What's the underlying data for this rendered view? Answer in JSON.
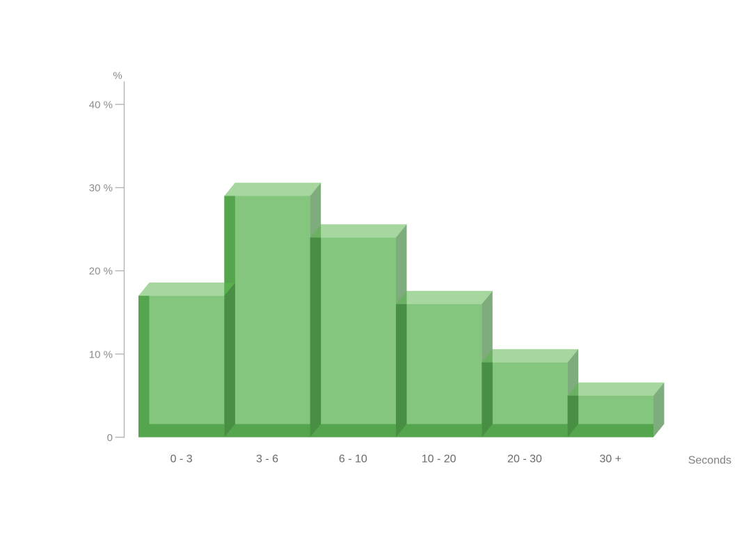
{
  "page": {
    "background": "#ffffff"
  },
  "chart_data": {
    "type": "bar",
    "variant": "3d-histogram",
    "title": "",
    "categories": [
      "0 - 3",
      "3 - 6",
      "6 - 10",
      "10 - 20",
      "20 - 30",
      "30 +"
    ],
    "values": [
      17,
      29,
      24,
      16,
      9,
      5
    ],
    "value_unit": "%",
    "xlabel": "Seconds",
    "ylabel": "%",
    "ylim": [
      0,
      44
    ],
    "grid": false,
    "legend": "none",
    "yticks": [
      {
        "value": 0,
        "label": "0"
      },
      {
        "value": 10,
        "label": "10 %"
      },
      {
        "value": 20,
        "label": "20 %"
      },
      {
        "value": 30,
        "label": "30 %"
      },
      {
        "value": 40,
        "label": "40 %"
      }
    ],
    "colors": {
      "bar_front": "#84c67e",
      "bar_top_highlight": "rgba(93,182,79,0.55)",
      "bar_side_shadow": "rgba(66,132,63,0.68)",
      "bar_edge_dark": "#55a54e",
      "axis": "#b4b4b4",
      "ytick_text": "#8d8d8d",
      "xtick_text": "#6a6a6a",
      "axis_title_text": "#7f7f7f"
    }
  }
}
